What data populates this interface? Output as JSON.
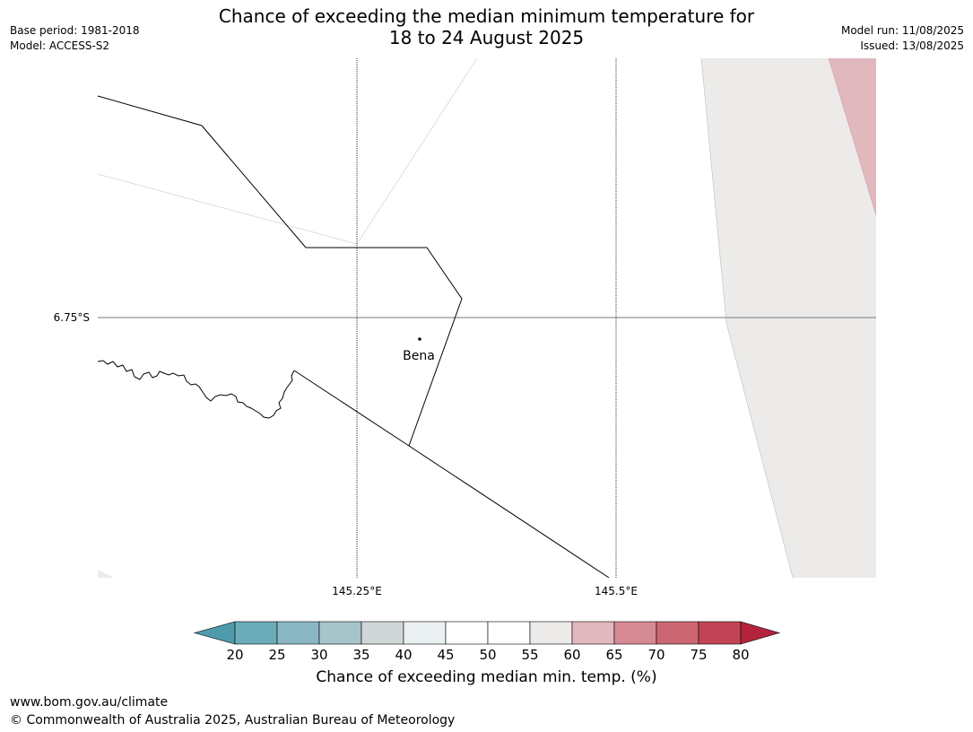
{
  "title": {
    "line1": "Chance of exceeding the median minimum temperature for",
    "line2": "18 to 24 August 2025"
  },
  "meta_left": {
    "base_period": "Base period: 1981-2018",
    "model": "Model: ACCESS-S2"
  },
  "meta_right": {
    "model_run": "Model run: 11/08/2025",
    "issued": "Issued: 13/08/2025"
  },
  "map": {
    "lat_label": "6.75°S",
    "lon_labels": [
      "145.25°E",
      "145.5°E"
    ],
    "place": "Bena",
    "colors": {
      "neutral_fill": "#ecebea",
      "high_fill": "#e1b8be"
    }
  },
  "colorbar": {
    "ticks": [
      "20",
      "25",
      "30",
      "35",
      "40",
      "45",
      "50",
      "55",
      "60",
      "65",
      "70",
      "75",
      "80"
    ],
    "colors": [
      "#4e9bab",
      "#6aacba",
      "#89b7c3",
      "#a6c4ca",
      "#d1d6d8",
      "#ebf0f3",
      "#ffffff",
      "#ffffff",
      "#ecebea",
      "#e1b8be",
      "#d68a94",
      "#cb6672",
      "#c14556",
      "#b4243c"
    ],
    "title": "Chance of exceeding median min. temp. (%)"
  },
  "footer": {
    "url": "www.bom.gov.au/climate",
    "copyright": "© Commonwealth of Australia 2025, Australian Bureau of Meteorology"
  }
}
